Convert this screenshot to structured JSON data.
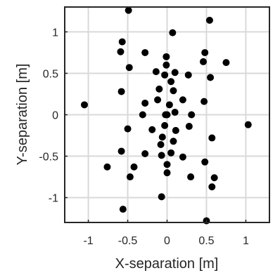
{
  "chart_data": {
    "type": "scatter",
    "title": "",
    "xlabel": "X-separation [m]",
    "ylabel": "Y-separation [m]",
    "xlim": [
      -1.3,
      1.3
    ],
    "ylim": [
      -1.3,
      1.3
    ],
    "xticks": [
      -1,
      -0.5,
      0,
      0.5,
      1
    ],
    "yticks": [
      -1,
      -0.5,
      0,
      0.5,
      1
    ],
    "xtick_labels": [
      "-1",
      "-0.5",
      "0",
      "0.5",
      "1"
    ],
    "ytick_labels": [
      "-1",
      "-0.5",
      "0",
      "0.5",
      "1"
    ],
    "grid": true,
    "marker_color": "#000000",
    "series": [
      {
        "points": [
          [
            -0.49,
            1.26
          ],
          [
            0.54,
            1.14
          ],
          [
            -0.57,
            0.88
          ],
          [
            0.07,
            0.99
          ],
          [
            -0.59,
            0.76
          ],
          [
            -0.28,
            0.75
          ],
          [
            -0.48,
            0.57
          ],
          [
            -0.14,
            0.52
          ],
          [
            -0.01,
            0.7
          ],
          [
            0.48,
            0.75
          ],
          [
            0.46,
            0.64
          ],
          [
            0.75,
            0.63
          ],
          [
            -0.01,
            0.6
          ],
          [
            -0.03,
            0.48
          ],
          [
            0.1,
            0.51
          ],
          [
            0.27,
            0.48
          ],
          [
            0.55,
            0.45
          ],
          [
            -0.58,
            0.28
          ],
          [
            0.05,
            0.4
          ],
          [
            -0.1,
            0.31
          ],
          [
            0.08,
            0.29
          ],
          [
            -0.12,
            0.18
          ],
          [
            0.2,
            0.18
          ],
          [
            -0.28,
            0.14
          ],
          [
            0.03,
            0.12
          ],
          [
            0.47,
            0.16
          ],
          [
            -1.05,
            0.12
          ],
          [
            1.03,
            -0.12
          ],
          [
            -0.31,
            0.0
          ],
          [
            -0.02,
            0.0
          ],
          [
            0.0,
            0.0
          ],
          [
            0.31,
            0.0
          ],
          [
            0.1,
            0.03
          ],
          [
            -0.03,
            -0.13
          ],
          [
            -0.5,
            -0.17
          ],
          [
            -0.19,
            -0.18
          ],
          [
            0.11,
            -0.19
          ],
          [
            0.28,
            -0.14
          ],
          [
            -0.06,
            -0.27
          ],
          [
            0.57,
            -0.28
          ],
          [
            -0.08,
            -0.36
          ],
          [
            0.08,
            -0.32
          ],
          [
            -0.58,
            -0.44
          ],
          [
            -0.28,
            -0.47
          ],
          [
            -0.07,
            -0.49
          ],
          [
            0.05,
            -0.46
          ],
          [
            0.2,
            -0.51
          ],
          [
            0.48,
            -0.57
          ],
          [
            -0.76,
            -0.63
          ],
          [
            -0.42,
            -0.63
          ],
          [
            0.0,
            -0.6
          ],
          [
            -0.47,
            -0.75
          ],
          [
            0.0,
            -0.7
          ],
          [
            0.3,
            -0.75
          ],
          [
            0.6,
            -0.76
          ],
          [
            0.57,
            -0.87
          ],
          [
            -0.07,
            -0.99
          ],
          [
            -0.56,
            -1.14
          ],
          [
            0.5,
            -1.28
          ]
        ]
      }
    ]
  }
}
